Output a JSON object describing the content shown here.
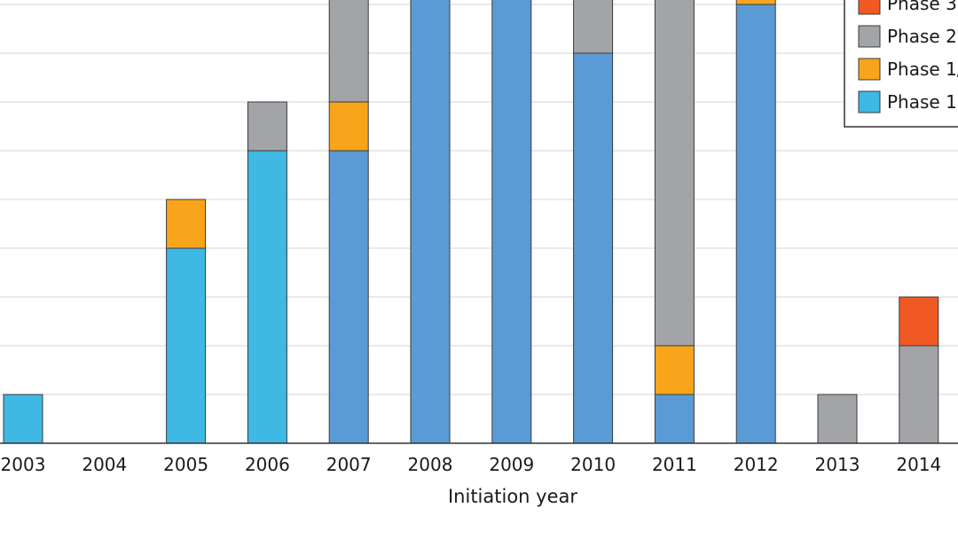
{
  "chart_data": {
    "type": "bar",
    "stacked": true,
    "title": "",
    "xlabel": "Initiation year",
    "ylabel": "",
    "categories": [
      "2003",
      "2004",
      "2005",
      "2006",
      "2007",
      "2008",
      "2009",
      "2010",
      "2011",
      "2012",
      "2013",
      "2014"
    ],
    "ylim": [
      0,
      9
    ],
    "grid": true,
    "legend": {
      "position": "top-right"
    },
    "series": [
      {
        "name": "Phase 1",
        "color": "#3fb8e4",
        "values": [
          0.2,
          0,
          0.8,
          1.2,
          0,
          0,
          0,
          0,
          0,
          0,
          0,
          0
        ]
      },
      {
        "name": "Phase 1 (blue)",
        "color": "#5b9bd5",
        "values": [
          0,
          0,
          0,
          0,
          1.2,
          2.4,
          4.0,
          1.6,
          0.2,
          1.8,
          0,
          0
        ]
      },
      {
        "name": "Phase 1/",
        "color": "#f8a51b",
        "values": [
          0,
          0,
          0.2,
          0,
          0.2,
          1.6,
          1.8,
          0,
          0.2,
          1.2,
          0,
          0
        ]
      },
      {
        "name": "Phase 2",
        "color": "#a3a4a8",
        "values": [
          0,
          0,
          0,
          0.2,
          1.6,
          3.0,
          3.4,
          2.2,
          2.0,
          1.6,
          0.2,
          0.4
        ]
      },
      {
        "name": "Phase 3",
        "color": "#f05a22",
        "values": [
          0,
          0,
          0,
          0,
          0,
          0.4,
          0,
          0.2,
          0.2,
          0,
          0,
          0.2
        ]
      }
    ],
    "legend_entries": [
      {
        "label": "Phase 3",
        "color": "#f05a22"
      },
      {
        "label": "Phase 2",
        "color": "#a3a4a8"
      },
      {
        "label": "Phase 1/",
        "color": "#f8a51b"
      },
      {
        "label": "Phase 1",
        "color": "#3fb8e4"
      }
    ]
  }
}
